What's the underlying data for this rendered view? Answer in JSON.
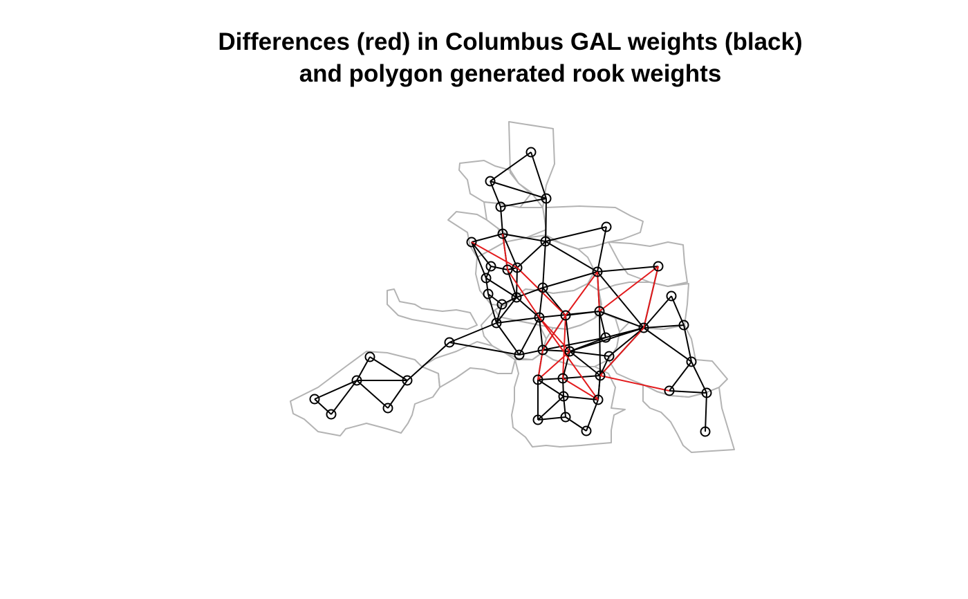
{
  "title": {
    "line1": "Differences (red) in Columbus GAL weights (black)",
    "line2": "and polygon generated rook weights"
  },
  "colors": {
    "background": "#ffffff",
    "polygon_border": "#b3b3b3",
    "gal_neighbor_link": "#000000",
    "difference_link": "#e31a1c",
    "centroid_marker": "#000000"
  },
  "legend": {
    "difference_series": "red",
    "gal_series": "black"
  }
}
